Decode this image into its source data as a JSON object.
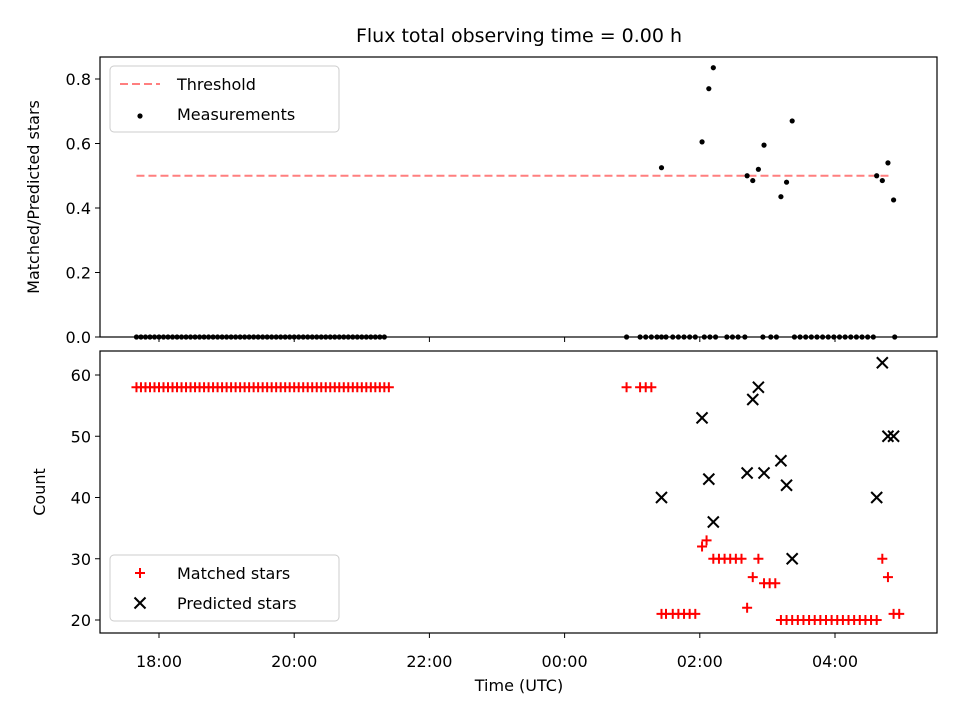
{
  "chart_data": {
    "type": "scatter",
    "title": "Flux total observing time = 0.00 h",
    "xlabel": "Time (UTC)",
    "x_ticks": [
      "18:00",
      "20:00",
      "22:00",
      "00:00",
      "02:00",
      "04:00"
    ],
    "panels": [
      {
        "ylabel": "Matched/Predicted stars",
        "ylim": [
          0,
          0.87
        ],
        "y_ticks": [
          "0.0",
          "0.2",
          "0.4",
          "0.6",
          "0.8"
        ],
        "legend": "upper left",
        "series": [
          {
            "name": "Threshold",
            "kind": "dashed-line",
            "color": "#ff7f7f",
            "points": [
              [
                "17:40",
                0.5
              ],
              [
                "04:50",
                0.5
              ]
            ]
          },
          {
            "name": "Measurements",
            "kind": "dot",
            "color": "#000000",
            "points": [
              [
                "17:40",
                0
              ],
              [
                "17:44",
                0
              ],
              [
                "17:48",
                0
              ],
              [
                "17:52",
                0
              ],
              [
                "17:56",
                0
              ],
              [
                "18:00",
                0
              ],
              [
                "18:04",
                0
              ],
              [
                "18:08",
                0
              ],
              [
                "18:12",
                0
              ],
              [
                "18:16",
                0
              ],
              [
                "18:20",
                0
              ],
              [
                "18:24",
                0
              ],
              [
                "18:28",
                0
              ],
              [
                "18:32",
                0
              ],
              [
                "18:36",
                0
              ],
              [
                "18:40",
                0
              ],
              [
                "18:44",
                0
              ],
              [
                "18:48",
                0
              ],
              [
                "18:52",
                0
              ],
              [
                "18:56",
                0
              ],
              [
                "19:00",
                0
              ],
              [
                "19:04",
                0
              ],
              [
                "19:08",
                0
              ],
              [
                "19:12",
                0
              ],
              [
                "19:16",
                0
              ],
              [
                "19:20",
                0
              ],
              [
                "19:24",
                0
              ],
              [
                "19:28",
                0
              ],
              [
                "19:32",
                0
              ],
              [
                "19:36",
                0
              ],
              [
                "19:40",
                0
              ],
              [
                "19:44",
                0
              ],
              [
                "19:48",
                0
              ],
              [
                "19:52",
                0
              ],
              [
                "19:56",
                0
              ],
              [
                "20:00",
                0
              ],
              [
                "20:04",
                0
              ],
              [
                "20:08",
                0
              ],
              [
                "20:12",
                0
              ],
              [
                "20:16",
                0
              ],
              [
                "20:20",
                0
              ],
              [
                "20:24",
                0
              ],
              [
                "20:28",
                0
              ],
              [
                "20:32",
                0
              ],
              [
                "20:36",
                0
              ],
              [
                "20:40",
                0
              ],
              [
                "20:44",
                0
              ],
              [
                "20:48",
                0
              ],
              [
                "20:52",
                0
              ],
              [
                "20:56",
                0
              ],
              [
                "21:00",
                0
              ],
              [
                "21:04",
                0
              ],
              [
                "21:08",
                0
              ],
              [
                "21:12",
                0
              ],
              [
                "21:16",
                0
              ],
              [
                "21:20",
                0
              ],
              [
                "00:55",
                0
              ],
              [
                "01:07",
                0
              ],
              [
                "01:12",
                0
              ],
              [
                "01:17",
                0
              ],
              [
                "01:22",
                0
              ],
              [
                "01:26",
                0
              ],
              [
                "01:30",
                0
              ],
              [
                "01:36",
                0
              ],
              [
                "01:41",
                0
              ],
              [
                "01:46",
                0
              ],
              [
                "01:51",
                0
              ],
              [
                "01:56",
                0
              ],
              [
                "02:04",
                0
              ],
              [
                "02:09",
                0
              ],
              [
                "02:14",
                0
              ],
              [
                "02:24",
                0
              ],
              [
                "02:29",
                0
              ],
              [
                "02:34",
                0
              ],
              [
                "02:40",
                0
              ],
              [
                "02:56",
                0
              ],
              [
                "03:03",
                0
              ],
              [
                "03:08",
                0
              ],
              [
                "03:24",
                0
              ],
              [
                "03:29",
                0
              ],
              [
                "03:34",
                0
              ],
              [
                "03:39",
                0
              ],
              [
                "03:44",
                0
              ],
              [
                "03:49",
                0
              ],
              [
                "03:54",
                0
              ],
              [
                "03:59",
                0
              ],
              [
                "04:04",
                0
              ],
              [
                "04:09",
                0
              ],
              [
                "04:14",
                0
              ],
              [
                "04:19",
                0
              ],
              [
                "04:24",
                0
              ],
              [
                "04:29",
                0
              ],
              [
                "04:34",
                0
              ],
              [
                "04:53",
                0
              ],
              [
                "01:26",
                0.525
              ],
              [
                "02:02",
                0.605
              ],
              [
                "02:08",
                0.77
              ],
              [
                "02:12",
                0.835
              ],
              [
                "02:42",
                0.5
              ],
              [
                "02:47",
                0.485
              ],
              [
                "02:52",
                0.52
              ],
              [
                "02:57",
                0.595
              ],
              [
                "03:12",
                0.435
              ],
              [
                "03:17",
                0.48
              ],
              [
                "03:22",
                0.67
              ],
              [
                "04:37",
                0.5
              ],
              [
                "04:42",
                0.485
              ],
              [
                "04:47",
                0.54
              ],
              [
                "04:52",
                0.425
              ]
            ]
          }
        ]
      },
      {
        "ylabel": "Count",
        "ylim": [
          18,
          64
        ],
        "y_ticks": [
          "20",
          "30",
          "40",
          "50",
          "60"
        ],
        "legend": "lower left",
        "series": [
          {
            "name": "Matched stars",
            "kind": "plus",
            "color": "#ff0000",
            "points": [
              [
                "17:40",
                58
              ],
              [
                "17:44",
                58
              ],
              [
                "17:48",
                58
              ],
              [
                "17:52",
                58
              ],
              [
                "17:56",
                58
              ],
              [
                "18:00",
                58
              ],
              [
                "18:04",
                58
              ],
              [
                "18:08",
                58
              ],
              [
                "18:12",
                58
              ],
              [
                "18:16",
                58
              ],
              [
                "18:20",
                58
              ],
              [
                "18:24",
                58
              ],
              [
                "18:28",
                58
              ],
              [
                "18:32",
                58
              ],
              [
                "18:36",
                58
              ],
              [
                "18:40",
                58
              ],
              [
                "18:44",
                58
              ],
              [
                "18:48",
                58
              ],
              [
                "18:52",
                58
              ],
              [
                "18:56",
                58
              ],
              [
                "19:00",
                58
              ],
              [
                "19:04",
                58
              ],
              [
                "19:08",
                58
              ],
              [
                "19:12",
                58
              ],
              [
                "19:16",
                58
              ],
              [
                "19:20",
                58
              ],
              [
                "19:24",
                58
              ],
              [
                "19:28",
                58
              ],
              [
                "19:32",
                58
              ],
              [
                "19:36",
                58
              ],
              [
                "19:40",
                58
              ],
              [
                "19:44",
                58
              ],
              [
                "19:48",
                58
              ],
              [
                "19:52",
                58
              ],
              [
                "19:56",
                58
              ],
              [
                "20:00",
                58
              ],
              [
                "20:04",
                58
              ],
              [
                "20:08",
                58
              ],
              [
                "20:12",
                58
              ],
              [
                "20:16",
                58
              ],
              [
                "20:20",
                58
              ],
              [
                "20:24",
                58
              ],
              [
                "20:28",
                58
              ],
              [
                "20:32",
                58
              ],
              [
                "20:36",
                58
              ],
              [
                "20:40",
                58
              ],
              [
                "20:44",
                58
              ],
              [
                "20:48",
                58
              ],
              [
                "20:52",
                58
              ],
              [
                "20:56",
                58
              ],
              [
                "21:00",
                58
              ],
              [
                "21:04",
                58
              ],
              [
                "21:08",
                58
              ],
              [
                "21:12",
                58
              ],
              [
                "21:16",
                58
              ],
              [
                "21:20",
                58
              ],
              [
                "21:24",
                58
              ],
              [
                "00:55",
                58
              ],
              [
                "01:07",
                58
              ],
              [
                "01:12",
                58
              ],
              [
                "01:17",
                58
              ],
              [
                "01:26",
                21
              ],
              [
                "01:30",
                21
              ],
              [
                "01:36",
                21
              ],
              [
                "01:41",
                21
              ],
              [
                "01:46",
                21
              ],
              [
                "01:51",
                21
              ],
              [
                "01:56",
                21
              ],
              [
                "02:02",
                32
              ],
              [
                "02:06",
                33
              ],
              [
                "02:12",
                30
              ],
              [
                "02:17",
                30
              ],
              [
                "02:22",
                30
              ],
              [
                "02:27",
                30
              ],
              [
                "02:32",
                30
              ],
              [
                "02:37",
                30
              ],
              [
                "02:42",
                22
              ],
              [
                "02:47",
                27
              ],
              [
                "02:52",
                30
              ],
              [
                "02:57",
                26
              ],
              [
                "03:02",
                26
              ],
              [
                "03:07",
                26
              ],
              [
                "03:12",
                20
              ],
              [
                "03:17",
                20
              ],
              [
                "03:22",
                20
              ],
              [
                "03:27",
                20
              ],
              [
                "03:32",
                20
              ],
              [
                "03:37",
                20
              ],
              [
                "03:42",
                20
              ],
              [
                "03:47",
                20
              ],
              [
                "03:52",
                20
              ],
              [
                "03:57",
                20
              ],
              [
                "04:02",
                20
              ],
              [
                "04:07",
                20
              ],
              [
                "04:12",
                20
              ],
              [
                "04:17",
                20
              ],
              [
                "04:22",
                20
              ],
              [
                "04:27",
                20
              ],
              [
                "04:32",
                20
              ],
              [
                "04:37",
                20
              ],
              [
                "04:42",
                30
              ],
              [
                "04:47",
                27
              ],
              [
                "04:52",
                21
              ],
              [
                "04:57",
                21
              ]
            ]
          },
          {
            "name": "Predicted stars",
            "kind": "x",
            "color": "#000000",
            "points": [
              [
                "01:26",
                40
              ],
              [
                "02:02",
                53
              ],
              [
                "02:08",
                43
              ],
              [
                "02:12",
                36
              ],
              [
                "02:42",
                44
              ],
              [
                "02:47",
                56
              ],
              [
                "02:52",
                58
              ],
              [
                "02:57",
                44
              ],
              [
                "03:12",
                46
              ],
              [
                "03:17",
                42
              ],
              [
                "03:22",
                30
              ],
              [
                "04:37",
                40
              ],
              [
                "04:42",
                62
              ],
              [
                "04:47",
                50
              ],
              [
                "04:52",
                50
              ]
            ]
          }
        ]
      }
    ]
  }
}
